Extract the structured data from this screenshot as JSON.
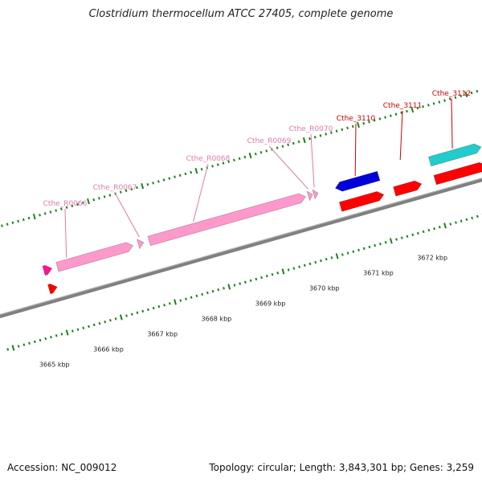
{
  "title": "Clostridium thermocellum ATCC 27405, complete genome",
  "accession": "Accession: NC_009012",
  "topology": "Topology: circular; Length: 3,843,301 bp; Genes: 3,259",
  "colors": {
    "backbone": "#808080",
    "tick": "#1e7f1e",
    "rrna": "#ff99cc",
    "rrna_label": "#e07aa8",
    "cds_red": "#ff0000",
    "cds_blue": "#0000dd",
    "cds_cyan": "#22cccc",
    "cds_magenta": "#ff1493",
    "cds_label": "#cc0000"
  },
  "axis": {
    "unit": "kbp",
    "ticks": [
      3665,
      3666,
      3667,
      3668,
      3669,
      3670,
      3671,
      3672
    ],
    "tick_labels": [
      "3665 kbp",
      "3666 kbp",
      "3667 kbp",
      "3668 kbp",
      "3669 kbp",
      "3670 kbp",
      "3671 kbp",
      "3672 kbp"
    ]
  },
  "features": [
    {
      "name": "",
      "type": "cds",
      "color": "cds_magenta",
      "start": 3665.9,
      "end": 3666.05,
      "strand": "+",
      "ring": "outer"
    },
    {
      "name": "",
      "type": "cds",
      "color": "cds_red",
      "start": 3665.9,
      "end": 3666.05,
      "strand": "+",
      "ring": "inner"
    },
    {
      "name": "Cthe_R0066",
      "type": "rrna",
      "color": "rrna",
      "start": 3666.15,
      "end": 3667.55,
      "strand": "+",
      "ring": "outer"
    },
    {
      "name": "Cthe_R0067",
      "type": "rrna",
      "color": "rrna",
      "start": 3667.65,
      "end": 3667.75,
      "strand": "+",
      "ring": "outer"
    },
    {
      "name": "Cthe_R0068",
      "type": "rrna",
      "color": "rrna",
      "start": 3667.85,
      "end": 3670.75,
      "strand": "+",
      "ring": "outer"
    },
    {
      "name": "Cthe_R0069",
      "type": "rrna",
      "color": "rrna",
      "start": 3670.8,
      "end": 3670.88,
      "strand": "+",
      "ring": "outer"
    },
    {
      "name": "Cthe_R0070",
      "type": "rrna",
      "color": "rrna",
      "start": 3670.9,
      "end": 3670.98,
      "strand": "+",
      "ring": "outer"
    },
    {
      "name": "Cthe_3110",
      "type": "cds",
      "color": "cds_blue",
      "start": 3671.3,
      "end": 3672.1,
      "strand": "-",
      "ring": "outer"
    },
    {
      "name": "",
      "type": "cds",
      "color": "cds_red",
      "start": 3671.3,
      "end": 3672.1,
      "strand": "+",
      "ring": "inner"
    },
    {
      "name": "Cthe_3111",
      "type": "cds",
      "color": "cds_red",
      "start": 3672.3,
      "end": 3672.8,
      "strand": "+",
      "ring": "inner"
    },
    {
      "name": "Cthe_3112",
      "type": "cds",
      "color": "cds_cyan",
      "start": 3673.05,
      "end": 3674.0,
      "strand": "+",
      "ring": "outer"
    },
    {
      "name": "",
      "type": "cds",
      "color": "cds_red",
      "start": 3673.05,
      "end": 3674.0,
      "strand": "+",
      "ring": "inner"
    }
  ]
}
